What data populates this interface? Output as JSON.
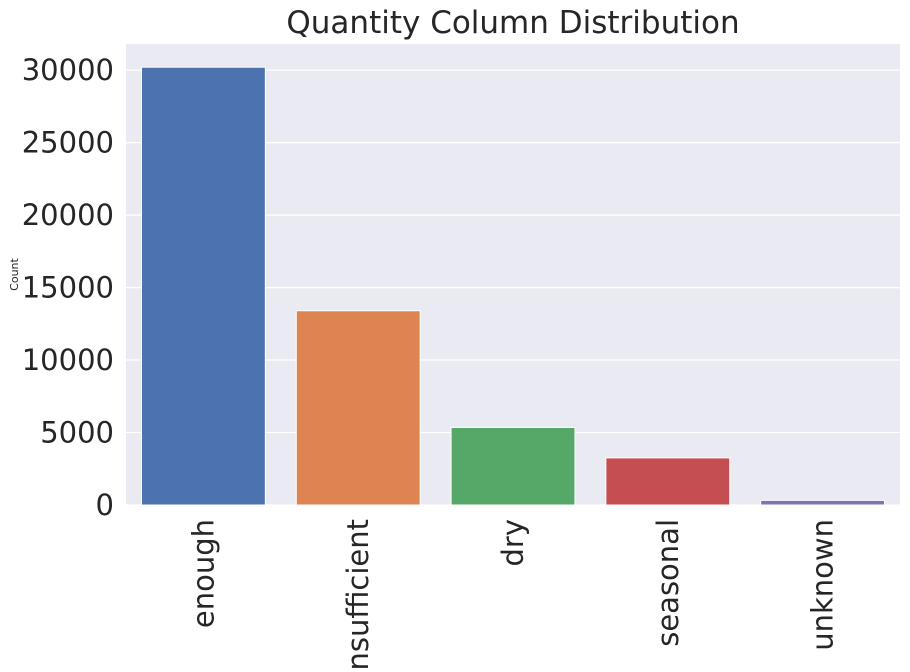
{
  "chart_data": {
    "type": "bar",
    "title": "Quantity Column Distribution",
    "xlabel": "",
    "ylabel": "Count",
    "categories": [
      "enough",
      "insufficient",
      "dry",
      "seasonal",
      "unknown"
    ],
    "values": [
      30200,
      13400,
      5350,
      3250,
      320
    ],
    "ylim": [
      0,
      31800
    ],
    "yticks": [
      0,
      5000,
      10000,
      15000,
      20000,
      25000,
      30000
    ],
    "grid": true,
    "colors": [
      "#4c72b0",
      "#dd8452",
      "#55a868",
      "#c44e52",
      "#8172b3"
    ],
    "background": "#eaeaf2"
  }
}
